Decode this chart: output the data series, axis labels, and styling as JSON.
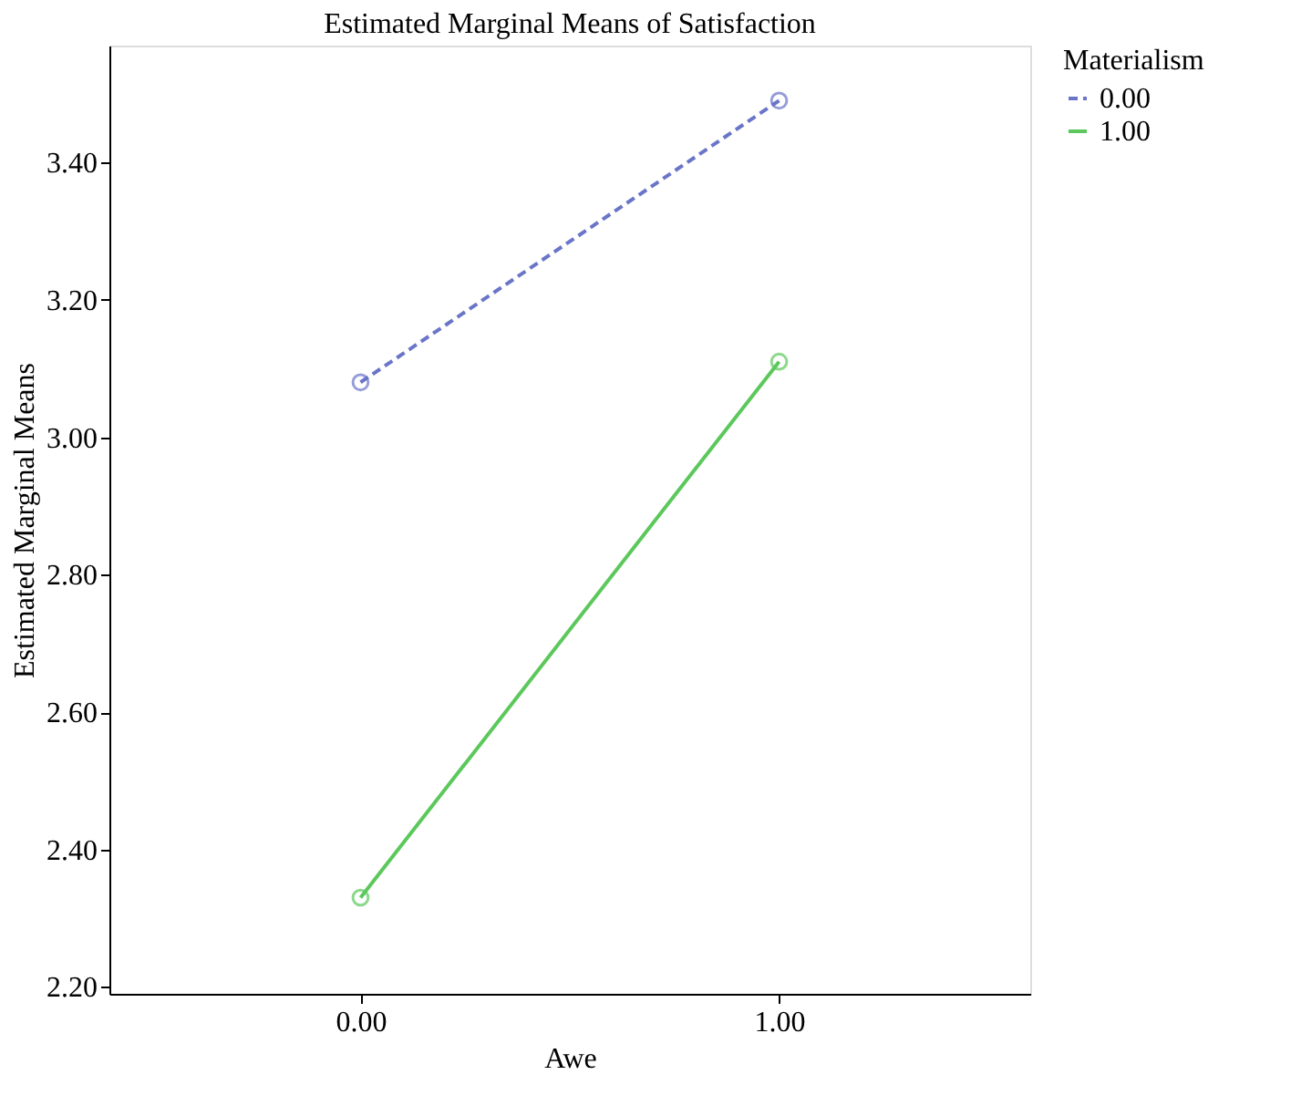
{
  "chart_data": {
    "type": "line",
    "title": "Estimated Marginal Means of Satisfaction",
    "xlabel": "Awe",
    "ylabel": "Estimated Marginal Means",
    "legend_title": "Materialism",
    "categories": [
      "0.00",
      "1.00"
    ],
    "series": [
      {
        "name": "0.00",
        "color": "#6a75c8",
        "values": [
          3.08,
          3.49
        ],
        "line_style": "dashed"
      },
      {
        "name": "1.00",
        "color": "#5cc85c",
        "values": [
          2.33,
          3.11
        ],
        "line_style": "solid"
      }
    ],
    "ylim": [
      2.19,
      3.57
    ],
    "yticks": [
      {
        "value": 2.2,
        "label": "2.20"
      },
      {
        "value": 2.4,
        "label": "2.40"
      },
      {
        "value": 2.6,
        "label": "2.60"
      },
      {
        "value": 2.8,
        "label": "2.80"
      },
      {
        "value": 3.0,
        "label": "3.00"
      },
      {
        "value": 3.2,
        "label": "3.20"
      },
      {
        "value": 3.4,
        "label": "3.40"
      }
    ],
    "grid": false,
    "legend": "top right",
    "marker": "circle"
  }
}
